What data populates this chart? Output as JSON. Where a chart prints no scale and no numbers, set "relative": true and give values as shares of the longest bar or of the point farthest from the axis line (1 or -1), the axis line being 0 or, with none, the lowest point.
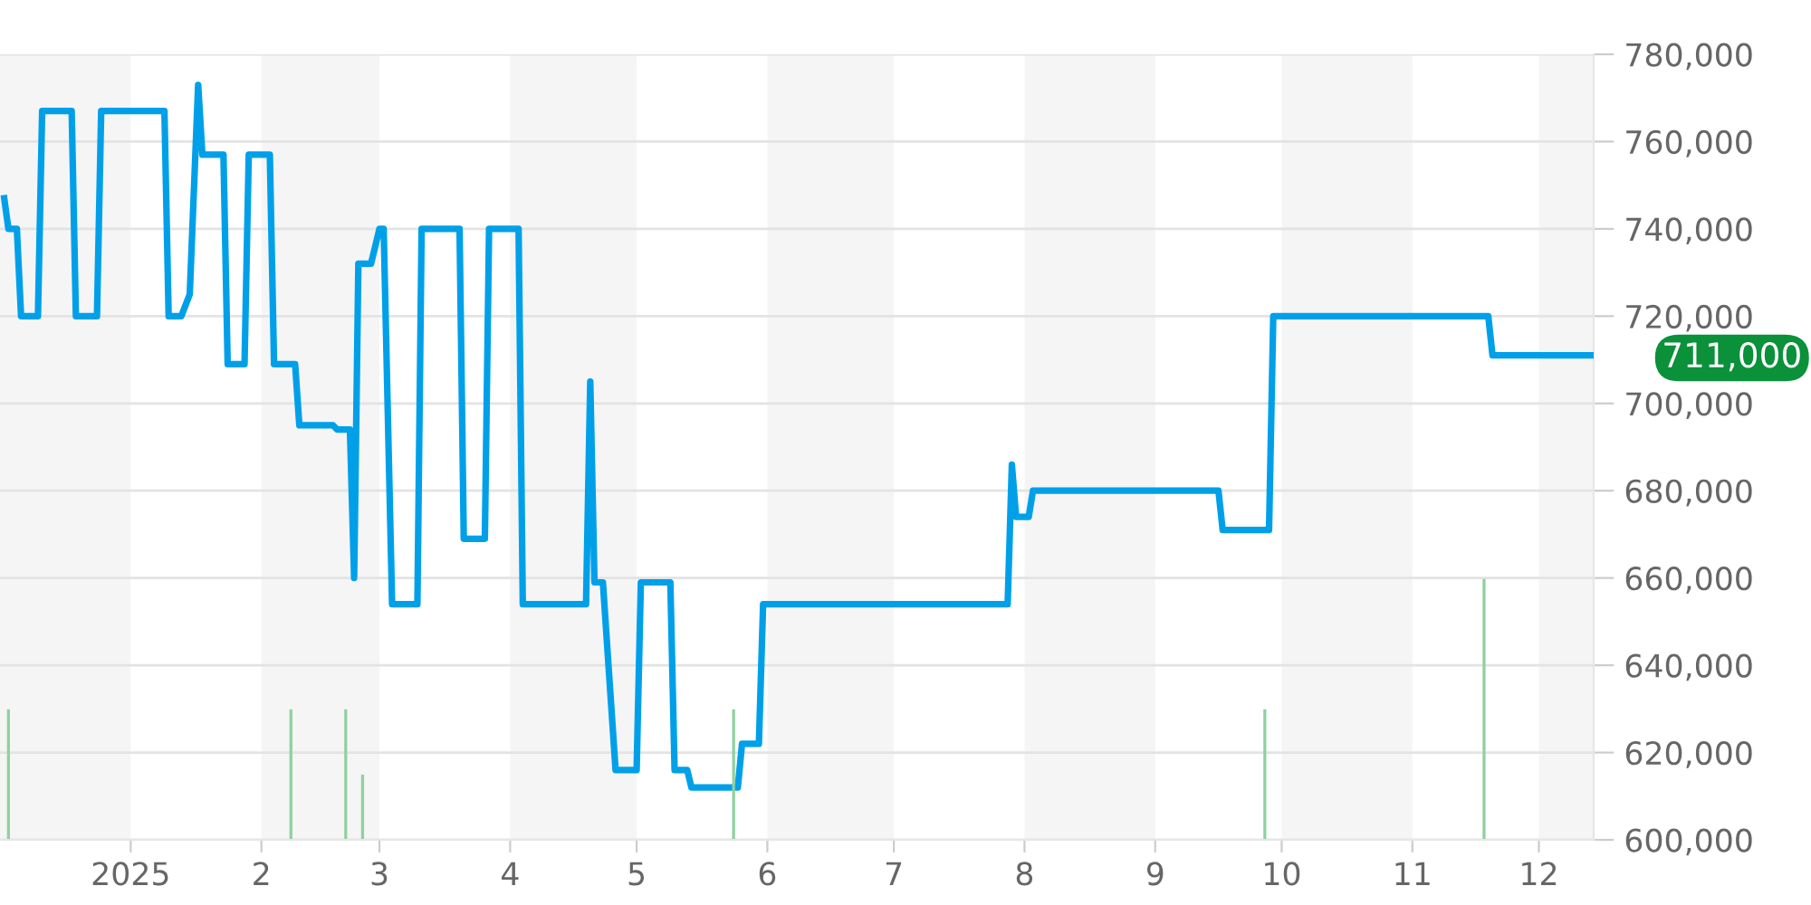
{
  "chart_data": [
    {
      "type": "line",
      "xlim": [
        "2024-12-01",
        "2025-12-14"
      ],
      "xticks": [
        {
          "value": "2025-01-01",
          "label": "2025"
        },
        {
          "value": "2025-02-01",
          "label": "2"
        },
        {
          "value": "2025-03-01",
          "label": "3"
        },
        {
          "value": "2025-04-01",
          "label": "4"
        },
        {
          "value": "2025-05-01",
          "label": "5"
        },
        {
          "value": "2025-06-01",
          "label": "6"
        },
        {
          "value": "2025-07-01",
          "label": "7"
        },
        {
          "value": "2025-08-01",
          "label": "8"
        },
        {
          "value": "2025-09-01",
          "label": "9"
        },
        {
          "value": "2025-10-01",
          "label": "10"
        },
        {
          "value": "2025-11-01",
          "label": "11"
        },
        {
          "value": "2025-12-01",
          "label": "12"
        }
      ],
      "ylim": [
        600000,
        780000
      ],
      "yticks": [
        {
          "value": 600000,
          "label": "600,000"
        },
        {
          "value": 620000,
          "label": "620,000"
        },
        {
          "value": 640000,
          "label": "640,000"
        },
        {
          "value": 660000,
          "label": "660,000"
        },
        {
          "value": 680000,
          "label": "680,000"
        },
        {
          "value": 700000,
          "label": "700,000"
        },
        {
          "value": 720000,
          "label": "720,000"
        },
        {
          "value": 740000,
          "label": "740,000"
        },
        {
          "value": 760000,
          "label": "760,000"
        },
        {
          "value": 780000,
          "label": "780,000"
        }
      ],
      "grid": "y",
      "marker": "none",
      "line_style": "solid",
      "bands": [
        {
          "axis": "x",
          "from": "2024-12-01",
          "to": "2025-01-01",
          "color": "#f5f5f5"
        },
        {
          "axis": "x",
          "from": "2025-02-01",
          "to": "2025-03-01",
          "color": "#f5f5f5"
        },
        {
          "axis": "x",
          "from": "2025-04-01",
          "to": "2025-05-01",
          "color": "#f5f5f5"
        },
        {
          "axis": "x",
          "from": "2025-06-01",
          "to": "2025-07-01",
          "color": "#f5f5f5"
        },
        {
          "axis": "x",
          "from": "2025-08-01",
          "to": "2025-09-01",
          "color": "#f5f5f5"
        },
        {
          "axis": "x",
          "from": "2025-10-01",
          "to": "2025-11-01",
          "color": "#f5f5f5"
        },
        {
          "axis": "x",
          "from": "2025-12-01",
          "to": "2025-12-14",
          "color": "#f5f5f5"
        }
      ],
      "annotations": [
        {
          "text": "711,000",
          "x": "2025-12-14",
          "y": 711000
        }
      ],
      "series": [
        {
          "color": "#00a0e9",
          "x": [
            "2024-12-02",
            "2024-12-03",
            "2024-12-05",
            "2024-12-06",
            "2024-12-10",
            "2024-12-11",
            "2024-12-18",
            "2024-12-19",
            "2024-12-24",
            "2024-12-25",
            "2025-01-09",
            "2025-01-10",
            "2025-01-13",
            "2025-01-15",
            "2025-01-17",
            "2025-01-18",
            "2025-01-23",
            "2025-01-24",
            "2025-01-28",
            "2025-01-29",
            "2025-02-03",
            "2025-02-04",
            "2025-02-09",
            "2025-02-10",
            "2025-02-18",
            "2025-02-19",
            "2025-02-22",
            "2025-02-23",
            "2025-02-24",
            "2025-02-27",
            "2025-03-01",
            "2025-03-02",
            "2025-03-04",
            "2025-03-10",
            "2025-03-11",
            "2025-03-20",
            "2025-03-21",
            "2025-03-26",
            "2025-03-27",
            "2025-04-03",
            "2025-04-04",
            "2025-04-19",
            "2025-04-20",
            "2025-04-21",
            "2025-04-23",
            "2025-04-26",
            "2025-05-01",
            "2025-05-02",
            "2025-05-09",
            "2025-05-10",
            "2025-05-13",
            "2025-05-14",
            "2025-05-25",
            "2025-05-26",
            "2025-05-30",
            "2025-05-31",
            "2025-07-28",
            "2025-07-29",
            "2025-07-30",
            "2025-08-02",
            "2025-08-03",
            "2025-09-16",
            "2025-09-17",
            "2025-09-28",
            "2025-09-29",
            "2025-11-19",
            "2025-11-20",
            "2025-12-14"
          ],
          "values": [
            747000,
            740000,
            740000,
            720000,
            720000,
            767000,
            767000,
            720000,
            720000,
            767000,
            767000,
            720000,
            720000,
            725000,
            773000,
            757000,
            757000,
            709000,
            709000,
            757000,
            757000,
            709000,
            709000,
            695000,
            695000,
            694000,
            694000,
            660000,
            732000,
            732000,
            740000,
            740000,
            654000,
            654000,
            740000,
            740000,
            669000,
            669000,
            740000,
            740000,
            654000,
            654000,
            705000,
            659000,
            659000,
            616000,
            616000,
            659000,
            659000,
            616000,
            616000,
            612000,
            612000,
            622000,
            622000,
            654000,
            654000,
            686000,
            674000,
            674000,
            680000,
            680000,
            671000,
            671000,
            720000,
            720000,
            711000,
            711000
          ]
        }
      ]
    },
    {
      "type": "bar",
      "relative": true,
      "xlim": [
        "2024-12-01",
        "2025-12-14"
      ],
      "x": [
        "2024-12-03",
        "2025-02-08",
        "2025-02-21",
        "2025-02-25",
        "2025-05-24",
        "2025-09-27",
        "2025-11-18"
      ],
      "values": [
        0.5,
        0.5,
        0.5,
        0.25,
        0.5,
        0.5,
        1
      ],
      "color": "#8fd19e"
    }
  ]
}
